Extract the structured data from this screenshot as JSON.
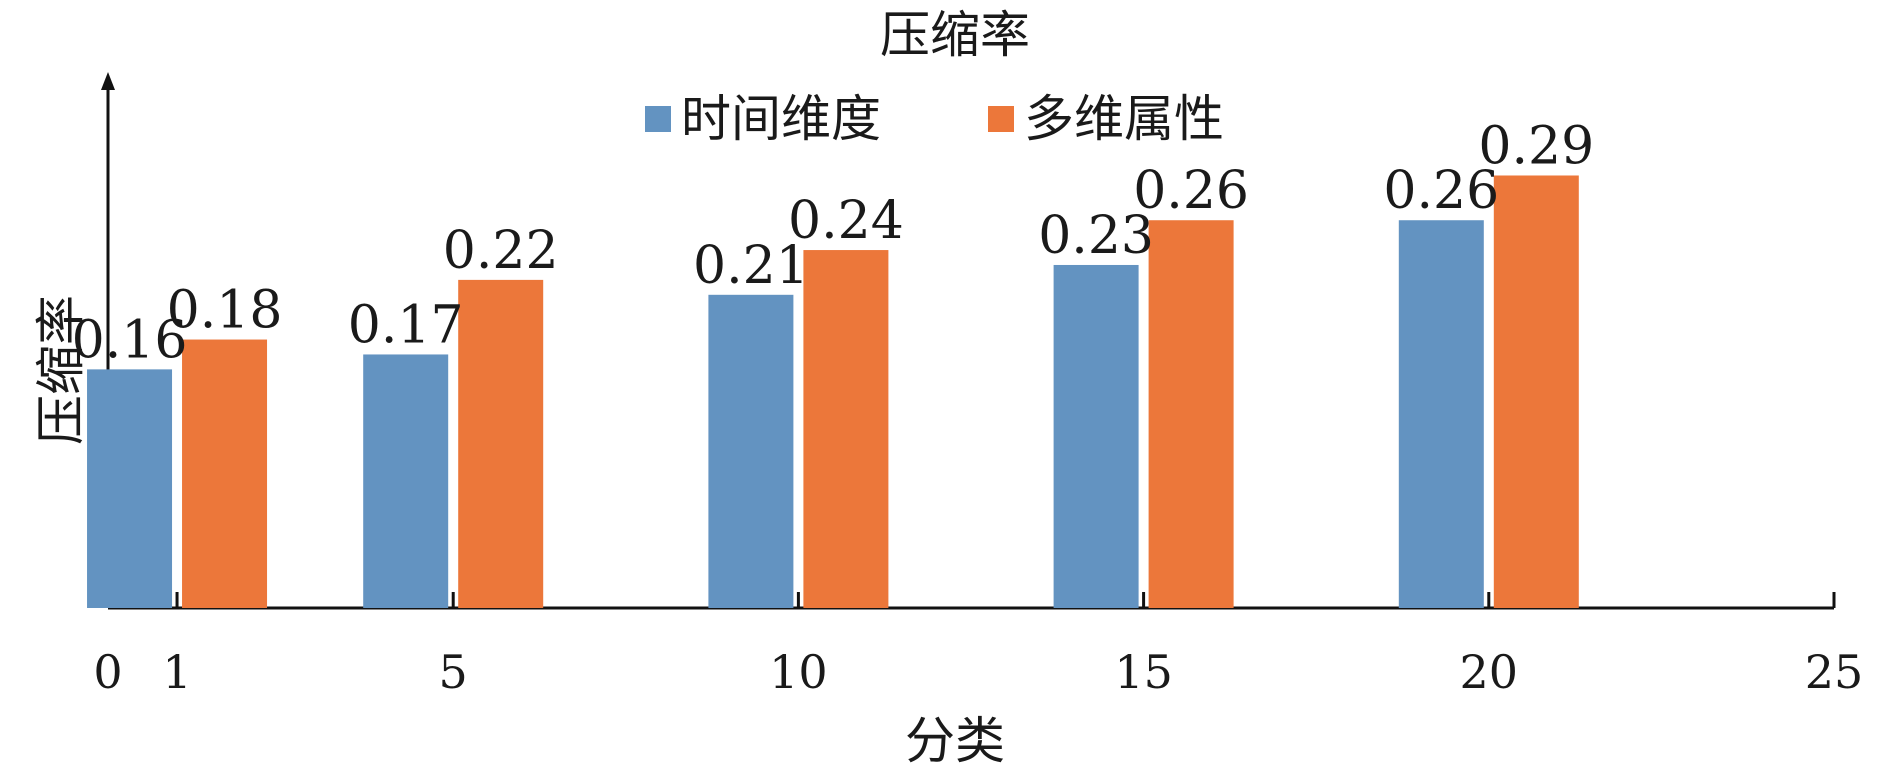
{
  "chart_data": {
    "type": "bar",
    "title": "压缩率",
    "xlabel": "分类",
    "ylabel": "压缩率",
    "x_ticks": [
      "0",
      "1",
      "5",
      "10",
      "15",
      "20",
      "25"
    ],
    "x_tick_values": [
      0,
      1,
      5,
      10,
      15,
      20,
      25
    ],
    "xlim": [
      0,
      25
    ],
    "ylim": [
      0,
      0.35
    ],
    "grid": false,
    "legend_position": "top-center",
    "categories": [
      1,
      5,
      10,
      15,
      20
    ],
    "series": [
      {
        "name": "时间维度",
        "color": "#6393C1",
        "values": [
          0.16,
          0.17,
          0.21,
          0.23,
          0.26
        ]
      },
      {
        "name": "多维属性",
        "color": "#EC773A",
        "values": [
          0.18,
          0.22,
          0.24,
          0.26,
          0.29
        ]
      }
    ]
  }
}
